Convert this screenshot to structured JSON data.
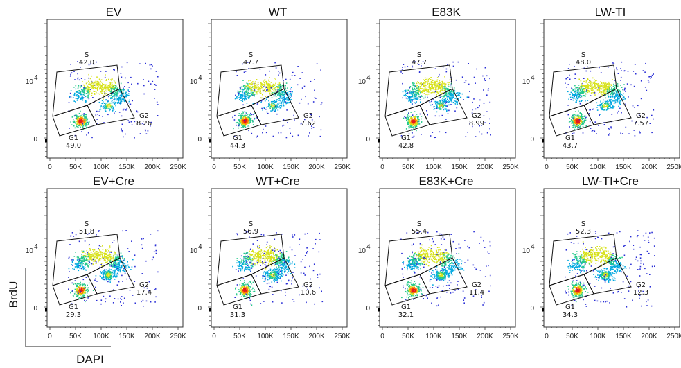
{
  "chart_data": {
    "type": "scatter",
    "xlabel": "DAPI",
    "ylabel": "BrdU",
    "x_ticks": [
      "0",
      "50K",
      "100K",
      "150K",
      "200K",
      "250K"
    ],
    "y_ticks": [
      "0",
      "10"
    ],
    "y_tick_exponent": "4",
    "xlim": [
      0,
      262144
    ],
    "colormap": [
      "#2a2fd6",
      "#00a8e0",
      "#25c98a",
      "#d7e21a",
      "#ff7a00",
      "#e31a1c"
    ],
    "gates": [
      "S",
      "G1",
      "G2"
    ],
    "panels": [
      {
        "title": "EV",
        "row": 0,
        "col": 0,
        "gates": {
          "S": "42.0",
          "G1": "49.0",
          "G2": "8.26"
        }
      },
      {
        "title": "WT",
        "row": 0,
        "col": 1,
        "gates": {
          "S": "47.7",
          "G1": "44.3",
          "G2": "7.62"
        }
      },
      {
        "title": "E83K",
        "row": 0,
        "col": 2,
        "gates": {
          "S": "47.7",
          "G1": "42.8",
          "G2": "8.99"
        }
      },
      {
        "title": "LW-TI",
        "row": 0,
        "col": 3,
        "gates": {
          "S": "48.0",
          "G1": "43.7",
          "G2": "7.57"
        }
      },
      {
        "title": "EV+Cre",
        "row": 1,
        "col": 0,
        "gates": {
          "S": "51.8",
          "G1": "29.3",
          "G2": "17.4"
        }
      },
      {
        "title": "WT+Cre",
        "row": 1,
        "col": 1,
        "gates": {
          "S": "56.9",
          "G1": "31.3",
          "G2": "10.6"
        }
      },
      {
        "title": "E83K+Cre",
        "row": 1,
        "col": 2,
        "gates": {
          "S": "55.4",
          "G1": "32.1",
          "G2": "11.4"
        }
      },
      {
        "title": "LW-TI+Cre",
        "row": 1,
        "col": 3,
        "gates": {
          "S": "52.3",
          "G1": "34.3",
          "G2": "12.3"
        }
      }
    ]
  }
}
